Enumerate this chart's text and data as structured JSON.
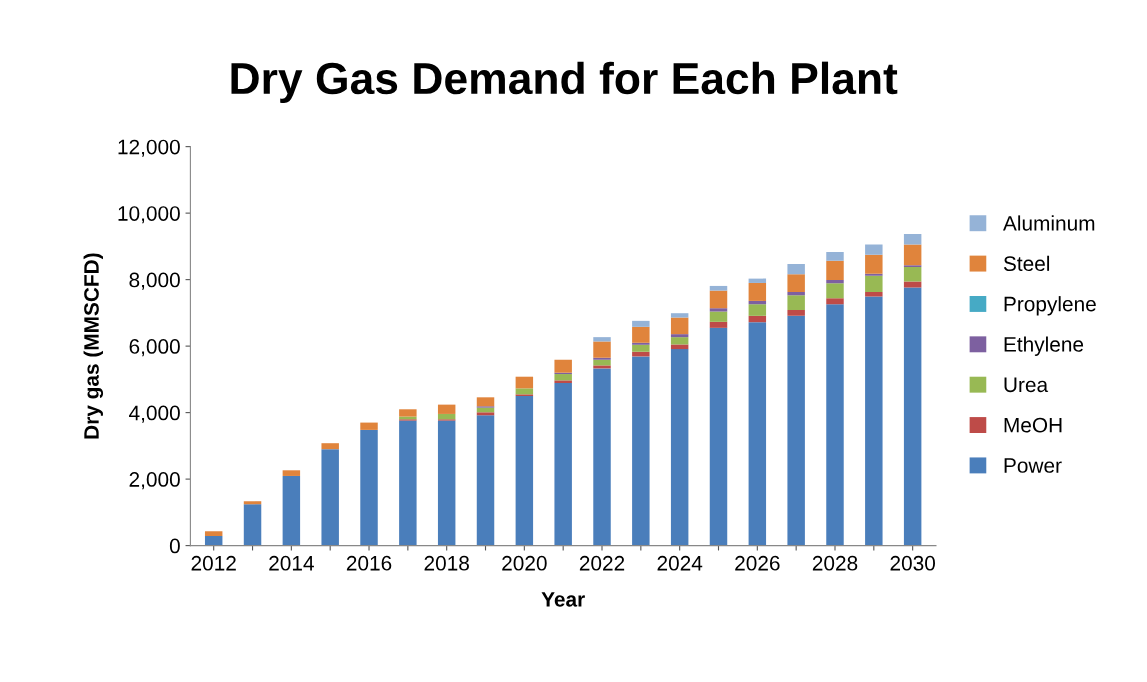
{
  "chart_data": {
    "type": "bar",
    "title": "Dry Gas Demand for Each Plant",
    "xlabel": "Year",
    "ylabel": "Dry gas (MMSCFD)",
    "categories": [
      "2012",
      null,
      "2014",
      null,
      "2016",
      null,
      "2018",
      null,
      "2020",
      null,
      "2022",
      null,
      "2024",
      null,
      "2026",
      null,
      "2028",
      null,
      "2030"
    ],
    "stacked": true,
    "ylim": [
      0,
      12000
    ],
    "yticks": [
      {
        "value": 0,
        "label": "0"
      },
      {
        "value": 2000,
        "label": "2,000"
      },
      {
        "value": 4000,
        "label": "4,000"
      },
      {
        "value": 6000,
        "label": "6,000"
      },
      {
        "value": 8000,
        "label": "8,000"
      },
      {
        "value": 10000,
        "label": "10,000"
      },
      {
        "value": 12000,
        "label": "12,000"
      }
    ],
    "grid": false,
    "legend": "right",
    "series": [
      {
        "name": "Power",
        "color": "#4a7ebb",
        "values": [
          290,
          1245,
          2095,
          2900,
          3480,
          3760,
          3760,
          3920,
          4500,
          4890,
          5330,
          5690,
          5910,
          6550,
          6720,
          6910,
          7260,
          7490,
          7760
        ]
      },
      {
        "name": "MeOH",
        "color": "#be4b48",
        "values": [
          0,
          0,
          0,
          0,
          0,
          40,
          40,
          90,
          50,
          80,
          90,
          140,
          140,
          180,
          190,
          180,
          180,
          140,
          180
        ]
      },
      {
        "name": "Urea",
        "color": "#98b954",
        "values": [
          0,
          0,
          0,
          0,
          0,
          80,
          160,
          140,
          180,
          190,
          170,
          210,
          220,
          310,
          350,
          440,
          450,
          490,
          440
        ]
      },
      {
        "name": "Ethylene",
        "color": "#7d60a0",
        "values": [
          0,
          0,
          0,
          0,
          0,
          0,
          0,
          40,
          0,
          40,
          60,
          60,
          90,
          100,
          100,
          100,
          100,
          60,
          50
        ]
      },
      {
        "name": "Propylene",
        "color": "#46aac5",
        "values": [
          0,
          0,
          0,
          0,
          0,
          0,
          0,
          0,
          0,
          0,
          0,
          0,
          0,
          0,
          0,
          0,
          0,
          0,
          0
        ]
      },
      {
        "name": "Steel",
        "color": "#e0843c",
        "values": [
          140,
          90,
          170,
          180,
          220,
          220,
          280,
          270,
          350,
          390,
          490,
          480,
          500,
          530,
          540,
          530,
          580,
          570,
          630
        ]
      },
      {
        "name": "Aluminum",
        "color": "#95b3d7",
        "values": [
          0,
          0,
          0,
          0,
          0,
          0,
          0,
          0,
          0,
          0,
          130,
          180,
          130,
          140,
          130,
          310,
          260,
          310,
          310
        ]
      }
    ]
  }
}
